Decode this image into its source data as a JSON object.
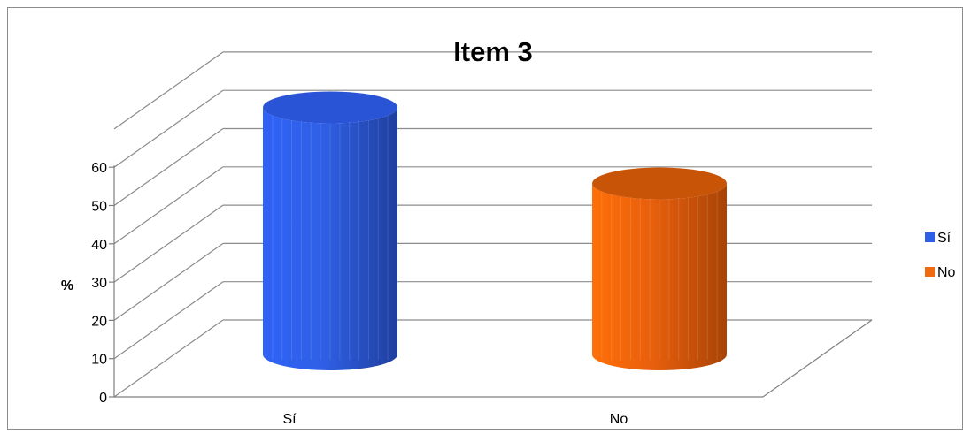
{
  "chart_data": {
    "type": "bar",
    "title": "Item 3",
    "xlabel": "",
    "ylabel": "%",
    "categories": [
      "Sí",
      "No"
    ],
    "series": [
      {
        "name": "Sí",
        "values": [
          65,
          null
        ],
        "color": "#2f5fe6"
      },
      {
        "name": "No",
        "values": [
          null,
          45
        ],
        "color": "#f06a10"
      }
    ],
    "ylim": [
      0,
      60
    ],
    "yticks": [
      "0",
      "10",
      "20",
      "30",
      "40",
      "50",
      "60"
    ],
    "grid": true,
    "legend": "right",
    "style": "3d-cylinder"
  }
}
